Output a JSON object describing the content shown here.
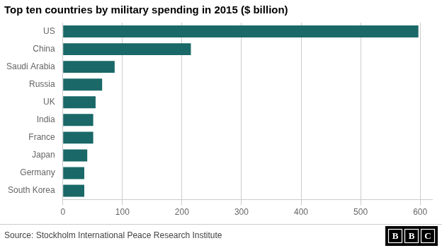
{
  "chart_data": {
    "type": "bar",
    "orientation": "horizontal",
    "title": "Top ten countries by military spending in 2015 ($ billion)",
    "categories": [
      "US",
      "China",
      "Saudi Arabia",
      "Russia",
      "UK",
      "India",
      "France",
      "Japan",
      "Germany",
      "South Korea"
    ],
    "values": [
      597,
      215,
      87,
      66,
      55,
      51,
      51,
      41,
      36,
      36
    ],
    "color": "#1a6868",
    "xlim": [
      0,
      620
    ],
    "xticks": [
      0,
      100,
      200,
      300,
      400,
      500,
      600
    ],
    "grid": "x",
    "annotations": [
      "Source: Stockholm International Peace Research Institute",
      "BBC"
    ]
  }
}
